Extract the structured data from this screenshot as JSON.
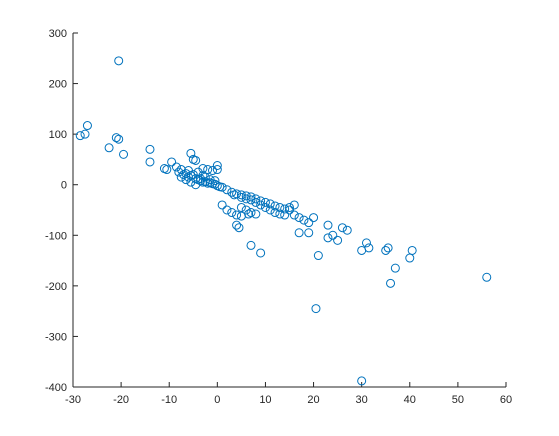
{
  "chart_data": {
    "type": "scatter",
    "title": "",
    "xlabel": "",
    "ylabel": "",
    "xlim": [
      -30,
      60
    ],
    "ylim": [
      -400,
      300
    ],
    "xticks": [
      "-30",
      "-20",
      "-10",
      "0",
      "10",
      "20",
      "30",
      "40",
      "50",
      "60"
    ],
    "yticks": [
      "300",
      "200",
      "100",
      "0",
      "-100",
      "-200",
      "-300",
      "-400"
    ],
    "grid": false,
    "legend": "none",
    "marker": "open circle",
    "color": "#0072BD",
    "series": [
      {
        "points": [
          [
            -20.5,
            245
          ],
          [
            -27,
            117
          ],
          [
            -28.5,
            97
          ],
          [
            -27.5,
            100
          ],
          [
            -21,
            93
          ],
          [
            -20.5,
            90
          ],
          [
            -22.5,
            73
          ],
          [
            -19.5,
            60
          ],
          [
            -14,
            70
          ],
          [
            -14,
            45
          ],
          [
            -11,
            32
          ],
          [
            -10.5,
            30
          ],
          [
            -9.5,
            45
          ],
          [
            -8.5,
            35
          ],
          [
            -8,
            25
          ],
          [
            -7,
            20
          ],
          [
            -6.5,
            22
          ],
          [
            -6,
            15
          ],
          [
            -5.5,
            18
          ],
          [
            -5,
            20
          ],
          [
            -4.5,
            12
          ],
          [
            -4,
            10
          ],
          [
            -3.5,
            8
          ],
          [
            -3,
            5
          ],
          [
            -2.5,
            6
          ],
          [
            -2,
            3
          ],
          [
            -1.5,
            4
          ],
          [
            -1,
            2
          ],
          [
            -0.5,
            1
          ],
          [
            0,
            -2
          ],
          [
            0.5,
            -4
          ],
          [
            1,
            -5
          ],
          [
            -5.5,
            62
          ],
          [
            -5,
            50
          ],
          [
            -4.5,
            48
          ],
          [
            -3,
            32
          ],
          [
            -2,
            30
          ],
          [
            -1,
            28
          ],
          [
            0,
            38
          ],
          [
            0,
            30
          ],
          [
            -7.5,
            15
          ],
          [
            -6.5,
            10
          ],
          [
            -5.5,
            5
          ],
          [
            -4.5,
            0
          ],
          [
            -3.5,
            12
          ],
          [
            -2.5,
            15
          ],
          [
            -1.5,
            10
          ],
          [
            -0.5,
            8
          ],
          [
            -3,
            18
          ],
          [
            -4,
            25
          ],
          [
            -6,
            28
          ],
          [
            -7.5,
            30
          ],
          [
            2,
            -10
          ],
          [
            3,
            -15
          ],
          [
            3.5,
            -20
          ],
          [
            4,
            -18
          ],
          [
            5,
            -25
          ],
          [
            6,
            -22
          ],
          [
            7,
            -30
          ],
          [
            8,
            -28
          ],
          [
            9,
            -32
          ],
          [
            10,
            -35
          ],
          [
            11,
            -38
          ],
          [
            12,
            -42
          ],
          [
            13,
            -45
          ],
          [
            14,
            -48
          ],
          [
            15,
            -50
          ],
          [
            16,
            -60
          ],
          [
            17,
            -65
          ],
          [
            18,
            -70
          ],
          [
            19,
            -75
          ],
          [
            20,
            -65
          ],
          [
            5,
            -20
          ],
          [
            6,
            -28
          ],
          [
            7,
            -24
          ],
          [
            8,
            -35
          ],
          [
            9,
            -40
          ],
          [
            10,
            -45
          ],
          [
            11,
            -50
          ],
          [
            12,
            -55
          ],
          [
            13,
            -58
          ],
          [
            14,
            -60
          ],
          [
            15,
            -45
          ],
          [
            1,
            -40
          ],
          [
            2,
            -50
          ],
          [
            3,
            -55
          ],
          [
            4,
            -60
          ],
          [
            5,
            -45
          ],
          [
            6,
            -50
          ],
          [
            7,
            -55
          ],
          [
            8,
            -58
          ],
          [
            4,
            -80
          ],
          [
            4.5,
            -85
          ],
          [
            5,
            -62
          ],
          [
            6.5,
            -58
          ],
          [
            7,
            -120
          ],
          [
            9,
            -135
          ],
          [
            16,
            -40
          ],
          [
            17,
            -95
          ],
          [
            19,
            -95
          ],
          [
            21,
            -140
          ],
          [
            23,
            -80
          ],
          [
            23,
            -105
          ],
          [
            24,
            -100
          ],
          [
            25,
            -110
          ],
          [
            26,
            -85
          ],
          [
            27,
            -90
          ],
          [
            30,
            -130
          ],
          [
            31,
            -115
          ],
          [
            31.5,
            -125
          ],
          [
            35,
            -130
          ],
          [
            35.5,
            -125
          ],
          [
            37,
            -165
          ],
          [
            36,
            -195
          ],
          [
            40,
            -145
          ],
          [
            40.5,
            -130
          ],
          [
            56,
            -183
          ],
          [
            20.5,
            -245
          ],
          [
            30,
            -388
          ]
        ]
      }
    ]
  }
}
